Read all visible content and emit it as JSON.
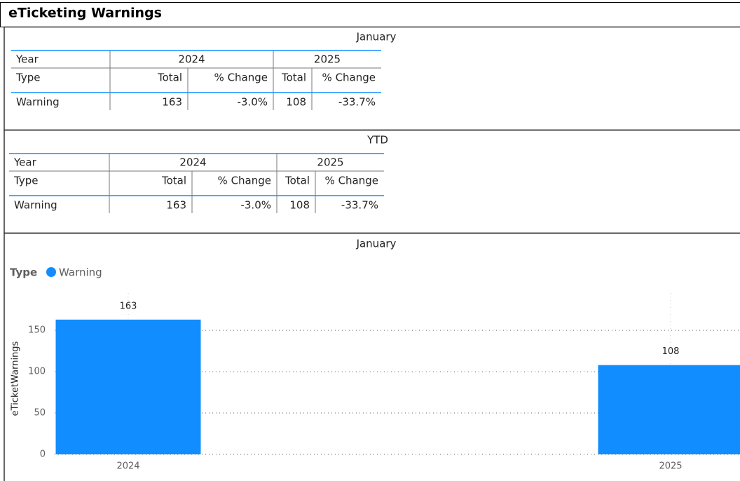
{
  "header": {
    "title": "eTicketing Warnings"
  },
  "tables": [
    {
      "title": "January",
      "year_label": "Year",
      "type_label": "Type",
      "years": [
        "2024",
        "2025"
      ],
      "columns": [
        "Total",
        "% Change",
        "Total",
        "% Change"
      ],
      "rows": [
        {
          "type": "Warning",
          "cells": [
            "163",
            "-3.0%",
            "108",
            "-33.7%"
          ]
        }
      ]
    },
    {
      "title": "YTD",
      "year_label": "Year",
      "type_label": "Type",
      "years": [
        "2024",
        "2025"
      ],
      "columns": [
        "Total",
        "% Change",
        "Total",
        "% Change"
      ],
      "rows": [
        {
          "type": "Warning",
          "cells": [
            "163",
            "-3.0%",
            "108",
            "-33.7%"
          ]
        }
      ]
    }
  ],
  "chart_data": {
    "type": "bar",
    "title": "January",
    "legend_title": "Type",
    "categories": [
      "2024",
      "2025"
    ],
    "series": [
      {
        "name": "Warning",
        "color": "#118DFF",
        "values": [
          163,
          108
        ]
      }
    ],
    "ylabel": "eTicketWarnings",
    "ylim": [
      0,
      190
    ],
    "yticks": [
      0,
      50,
      100,
      150
    ],
    "grid": true
  }
}
